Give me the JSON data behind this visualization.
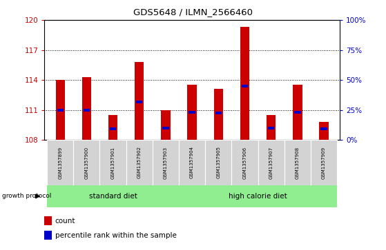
{
  "title": "GDS5648 / ILMN_2566460",
  "samples": [
    "GSM1357899",
    "GSM1357900",
    "GSM1357901",
    "GSM1357902",
    "GSM1357903",
    "GSM1357904",
    "GSM1357905",
    "GSM1357906",
    "GSM1357907",
    "GSM1357908",
    "GSM1357909"
  ],
  "counts": [
    114.0,
    114.3,
    110.5,
    115.8,
    111.0,
    113.5,
    113.1,
    119.3,
    110.5,
    113.5,
    109.8
  ],
  "percentile_values": [
    111.0,
    111.0,
    109.1,
    111.8,
    109.2,
    110.8,
    110.7,
    113.4,
    109.2,
    110.8,
    109.1
  ],
  "ymin": 108,
  "ymax": 120,
  "yticks_left": [
    108,
    111,
    114,
    117,
    120
  ],
  "yticks_right": [
    0,
    25,
    50,
    75,
    100
  ],
  "bar_color": "#cc0000",
  "percentile_color": "#0000cc",
  "bar_width": 0.35,
  "standard_diet_count": 5,
  "group_label_standard": "standard diet",
  "group_label_high": "high calorie diet",
  "group_bg_color": "#90ee90",
  "sample_bg_color": "#d3d3d3",
  "legend_count_label": "count",
  "legend_pct_label": "percentile rank within the sample",
  "growth_protocol_label": "growth protocol"
}
